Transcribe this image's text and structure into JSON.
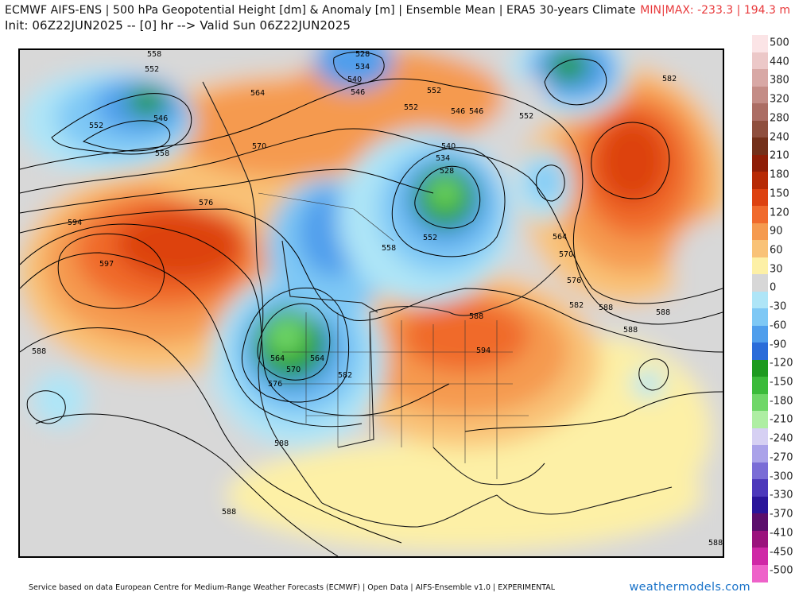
{
  "header": {
    "title": "ECMWF AIFS-ENS | 500 hPa Geopotential Height [dm] & Anomaly [m] | Ensemble Mean | ERA5 30-years Climate",
    "subtitle": "Init: 06Z22JUN2025 -- [0] hr --> Valid Sun 06Z22JUN2025",
    "minmax": "MIN|MAX: -233.3 | 194.3 m"
  },
  "colorbar": {
    "labels": [
      "500",
      "440",
      "380",
      "320",
      "280",
      "240",
      "210",
      "180",
      "150",
      "120",
      "90",
      "60",
      "30",
      "0",
      "-30",
      "-60",
      "-90",
      "-120",
      "-150",
      "-180",
      "-210",
      "-240",
      "-270",
      "-300",
      "-330",
      "-370",
      "-410",
      "-450",
      "-500"
    ],
    "colors": [
      "#fbe4e6",
      "#ecc8c8",
      "#d8a8a5",
      "#c48c86",
      "#ac6d64",
      "#8f4f3e",
      "#74301a",
      "#8f1e07",
      "#b72a05",
      "#dd4210",
      "#f06a2c",
      "#f59a4f",
      "#f9c277",
      "#fdf0a6",
      "#d7d7d7",
      "#aee5f7",
      "#7ec8f5",
      "#4f9eec",
      "#2a6cd9",
      "#1d9a1f",
      "#3bbb3a",
      "#6fd768",
      "#aeeea3",
      "#d6d0f3",
      "#aaa2e9",
      "#7a6cd6",
      "#4c38bb",
      "#2a159a",
      "#5c0e6c",
      "#9b127d",
      "#cf28a6",
      "#ee62c9"
    ]
  },
  "map": {
    "contour_labels": [
      "558",
      "552",
      "552",
      "546",
      "558",
      "564",
      "570",
      "576",
      "594",
      "597",
      "588",
      "534",
      "528",
      "540",
      "546",
      "552",
      "552",
      "546",
      "534",
      "540",
      "528",
      "552",
      "546",
      "552",
      "558",
      "564",
      "570",
      "576",
      "582",
      "582",
      "588",
      "588",
      "588",
      "564",
      "570",
      "576",
      "582",
      "588",
      "588",
      "594",
      "588",
      "588",
      "564"
    ]
  },
  "footer": {
    "credit": "Service based on data European Centre for Medium-Range Weather Forecasts (ECMWF) | Open Data | AIFS-Ensemble v1.0 | EXPERIMENTAL",
    "brand": "weathermodels.com"
  }
}
